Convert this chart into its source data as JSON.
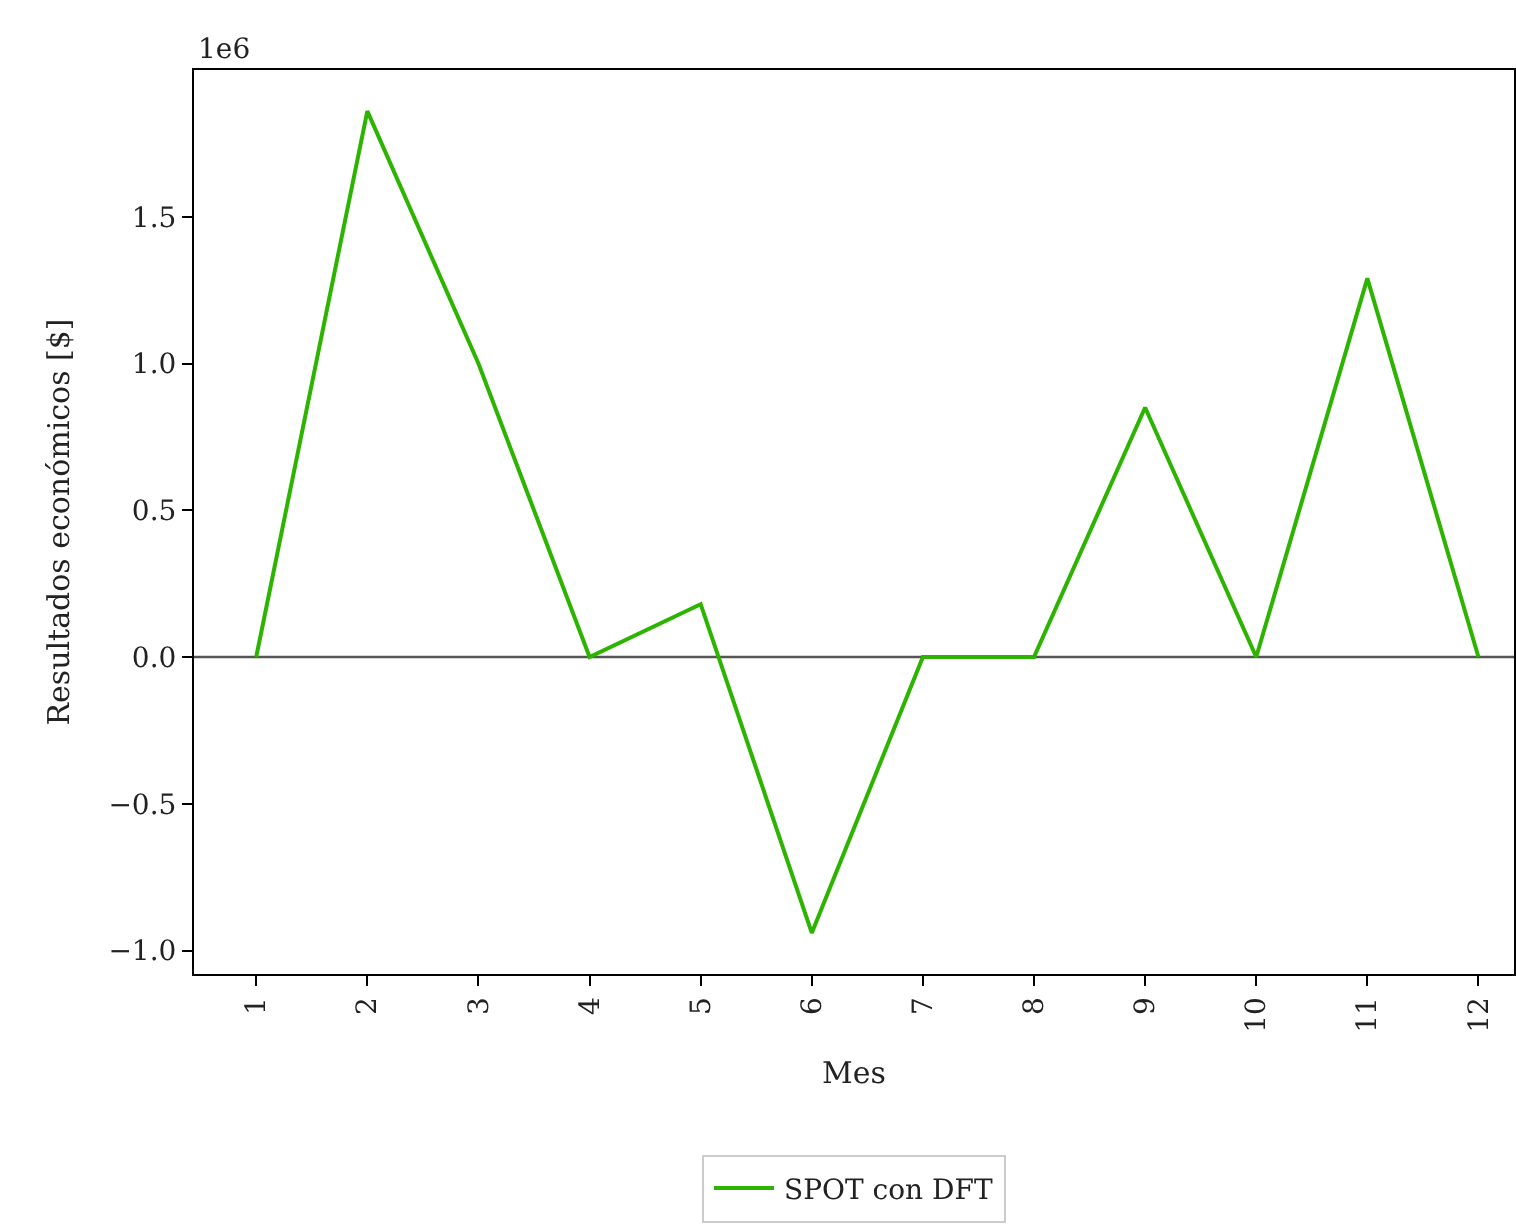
{
  "chart_data": {
    "type": "line",
    "xlabel": "Mes",
    "ylabel": "Resultados económicos [$]",
    "annotations": [
      "1e6"
    ],
    "x": [
      1,
      2,
      3,
      4,
      5,
      6,
      7,
      8,
      9,
      10,
      11,
      12
    ],
    "series": [
      {
        "name": "SPOT con DFT",
        "color": "#2cb400",
        "values": [
          0,
          1.86,
          1.0,
          0,
          0.18,
          -0.94,
          0,
          0,
          0.85,
          0,
          1.29,
          0
        ]
      }
    ],
    "xlim": [
      0.44,
      12.32
    ],
    "xticks": [
      1,
      2,
      3,
      4,
      5,
      6,
      7,
      8,
      9,
      10,
      11,
      12
    ],
    "ylim": [
      -1.08,
      2.0
    ],
    "yticks": [
      {
        "value": -1.0,
        "label": "−1.0"
      },
      {
        "value": -0.5,
        "label": "−0.5"
      },
      {
        "value": 0,
        "label": "0.0"
      },
      {
        "value": 0.5,
        "label": "0.5"
      },
      {
        "value": 1.0,
        "label": "1.0"
      },
      {
        "value": 1.5,
        "label": "1.5"
      }
    ],
    "ref_lines": [
      {
        "axis": "y",
        "value": 0,
        "color": "#555555"
      }
    ],
    "grid": false,
    "legend": "bottom",
    "marker": "none",
    "line_style": "solid"
  }
}
